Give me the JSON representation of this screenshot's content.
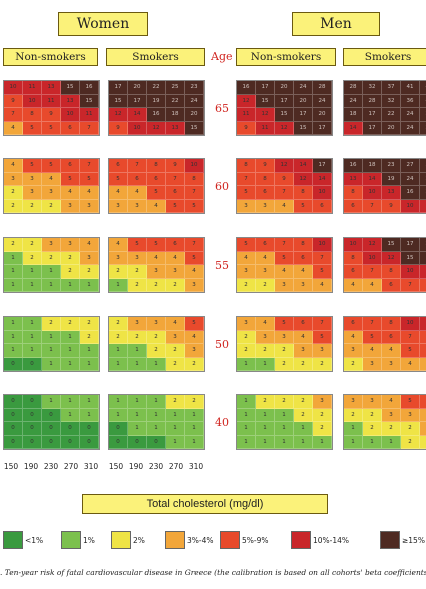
{
  "chart_data": {
    "type": "heatmap",
    "groups": [
      "Women",
      "Men"
    ],
    "smoking_labels": [
      "Non-smokers",
      "Smokers",
      "Non-smokers",
      "Smokers"
    ],
    "age_axis_label": "Age",
    "ages": [
      "65",
      "60",
      "55",
      "50",
      "40"
    ],
    "x_tick_labels": [
      "150",
      "190",
      "230",
      "270",
      "310"
    ],
    "x_label": "Total cholesterol (mg/dl)",
    "legend": [
      {
        "label": "<1%",
        "color": "#3a9a3f"
      },
      {
        "label": "1%",
        "color": "#7cc04d"
      },
      {
        "label": "2%",
        "color": "#efe446"
      },
      {
        "label": "3%-4%",
        "color": "#f2a63a"
      },
      {
        "label": "5%-9%",
        "color": "#e84a2c"
      },
      {
        "label": "10%-14%",
        "color": "#c9262a"
      },
      {
        "label": "≥15%",
        "color": "#4e2a22"
      }
    ],
    "panels": [
      {
        "group": "Women",
        "smoking": "Non-smokers",
        "age": "65",
        "rows": [
          [
            "10",
            "11",
            "13",
            "15",
            "16"
          ],
          [
            "9",
            "10",
            "11",
            "13",
            "15"
          ],
          [
            "7",
            "8",
            "9",
            "10",
            "11"
          ],
          [
            "4",
            "5",
            "5",
            "6",
            "7"
          ]
        ]
      },
      {
        "group": "Women",
        "smoking": "Smokers",
        "age": "65",
        "rows": [
          [
            "17",
            "20",
            "22",
            "25",
            "23"
          ],
          [
            "15",
            "17",
            "19",
            "22",
            "24"
          ],
          [
            "12",
            "14",
            "16",
            "18",
            "20"
          ],
          [
            "9",
            "10",
            "12",
            "13",
            "15"
          ]
        ]
      },
      {
        "group": "Men",
        "smoking": "Non-smokers",
        "age": "65",
        "rows": [
          [
            "16",
            "17",
            "20",
            "24",
            "28"
          ],
          [
            "12",
            "15",
            "17",
            "20",
            "24"
          ],
          [
            "11",
            "12",
            "15",
            "17",
            "20"
          ],
          [
            "9",
            "11",
            "12",
            "15",
            "17"
          ]
        ]
      },
      {
        "group": "Men",
        "smoking": "Smokers",
        "age": "65",
        "rows": [
          [
            "28",
            "32",
            "37",
            "41",
            "45"
          ],
          [
            "24",
            "28",
            "32",
            "36",
            "40"
          ],
          [
            "18",
            "17",
            "22",
            "24",
            "28"
          ],
          [
            "14",
            "17",
            "20",
            "24",
            "27"
          ]
        ]
      },
      {
        "group": "Women",
        "smoking": "Non-smokers",
        "age": "60",
        "rows": [
          [
            "4",
            "5",
            "5",
            "6",
            "7"
          ],
          [
            "3",
            "3",
            "4",
            "5",
            "5"
          ],
          [
            "2",
            "3",
            "3",
            "4",
            "4"
          ],
          [
            "2",
            "2",
            "2",
            "3",
            "3"
          ]
        ]
      },
      {
        "group": "Women",
        "smoking": "Smokers",
        "age": "60",
        "rows": [
          [
            "6",
            "7",
            "8",
            "9",
            "10"
          ],
          [
            "5",
            "6",
            "6",
            "7",
            "8"
          ],
          [
            "4",
            "4",
            "5",
            "6",
            "7"
          ],
          [
            "3",
            "3",
            "4",
            "5",
            "5"
          ]
        ]
      },
      {
        "group": "Men",
        "smoking": "Non-smokers",
        "age": "60",
        "rows": [
          [
            "8",
            "9",
            "12",
            "14",
            "17"
          ],
          [
            "7",
            "8",
            "9",
            "12",
            "14"
          ],
          [
            "5",
            "6",
            "7",
            "8",
            "10"
          ],
          [
            "3",
            "3",
            "4",
            "5",
            "6"
          ]
        ]
      },
      {
        "group": "Men",
        "smoking": "Smokers",
        "age": "60",
        "rows": [
          [
            "16",
            "18",
            "23",
            "27",
            "32"
          ],
          [
            "13",
            "14",
            "19",
            "24",
            "28"
          ],
          [
            "8",
            "10",
            "13",
            "16",
            "20"
          ],
          [
            "6",
            "7",
            "9",
            "10",
            "12"
          ]
        ]
      },
      {
        "group": "Women",
        "smoking": "Non-smokers",
        "age": "55",
        "rows": [
          [
            "2",
            "2",
            "3",
            "3",
            "4"
          ],
          [
            "1",
            "2",
            "2",
            "2",
            "3"
          ],
          [
            "1",
            "1",
            "1",
            "2",
            "2"
          ],
          [
            "1",
            "1",
            "1",
            "1",
            "1"
          ]
        ]
      },
      {
        "group": "Women",
        "smoking": "Smokers",
        "age": "55",
        "rows": [
          [
            "4",
            "5",
            "5",
            "6",
            "7"
          ],
          [
            "3",
            "3",
            "4",
            "4",
            "5"
          ],
          [
            "2",
            "2",
            "3",
            "3",
            "4"
          ],
          [
            "1",
            "2",
            "2",
            "2",
            "3"
          ]
        ]
      },
      {
        "group": "Men",
        "smoking": "Non-smokers",
        "age": "55",
        "rows": [
          [
            "5",
            "6",
            "7",
            "8",
            "10"
          ],
          [
            "4",
            "4",
            "5",
            "6",
            "7"
          ],
          [
            "3",
            "3",
            "4",
            "4",
            "5"
          ],
          [
            "2",
            "2",
            "3",
            "3",
            "4"
          ]
        ]
      },
      {
        "group": "Men",
        "smoking": "Smokers",
        "age": "55",
        "rows": [
          [
            "10",
            "12",
            "15",
            "17",
            "20"
          ],
          [
            "8",
            "10",
            "12",
            "15",
            "17"
          ],
          [
            "6",
            "7",
            "8",
            "10",
            "12"
          ],
          [
            "4",
            "4",
            "6",
            "7",
            "8"
          ]
        ]
      },
      {
        "group": "Women",
        "smoking": "Non-smokers",
        "age": "50",
        "rows": [
          [
            "1",
            "1",
            "2",
            "2",
            "2"
          ],
          [
            "1",
            "1",
            "1",
            "1",
            "2"
          ],
          [
            "1",
            "1",
            "1",
            "1",
            "1"
          ],
          [
            "0",
            "0",
            "1",
            "1",
            "1"
          ]
        ]
      },
      {
        "group": "Women",
        "smoking": "Smokers",
        "age": "50",
        "rows": [
          [
            "2",
            "3",
            "3",
            "4",
            "5"
          ],
          [
            "2",
            "2",
            "2",
            "3",
            "4"
          ],
          [
            "1",
            "1",
            "2",
            "2",
            "3"
          ],
          [
            "1",
            "1",
            "1",
            "2",
            "2"
          ]
        ]
      },
      {
        "group": "Men",
        "smoking": "Non-smokers",
        "age": "50",
        "rows": [
          [
            "3",
            "4",
            "5",
            "6",
            "7"
          ],
          [
            "2",
            "3",
            "3",
            "4",
            "5"
          ],
          [
            "2",
            "2",
            "2",
            "3",
            "3"
          ],
          [
            "1",
            "1",
            "2",
            "2",
            "2"
          ]
        ]
      },
      {
        "group": "Men",
        "smoking": "Smokers",
        "age": "50",
        "rows": [
          [
            "6",
            "7",
            "8",
            "10",
            "12"
          ],
          [
            "4",
            "5",
            "6",
            "7",
            "8"
          ],
          [
            "3",
            "4",
            "4",
            "5",
            "6"
          ],
          [
            "2",
            "3",
            "3",
            "4",
            "4"
          ]
        ]
      },
      {
        "group": "Women",
        "smoking": "Non-smokers",
        "age": "40",
        "rows": [
          [
            "0",
            "0",
            "1",
            "1",
            "1"
          ],
          [
            "0",
            "0",
            "0",
            "1",
            "1"
          ],
          [
            "0",
            "0",
            "0",
            "0",
            "0"
          ],
          [
            "0",
            "0",
            "0",
            "0",
            "0"
          ]
        ]
      },
      {
        "group": "Women",
        "smoking": "Smokers",
        "age": "40",
        "rows": [
          [
            "1",
            "1",
            "1",
            "2",
            "2"
          ],
          [
            "1",
            "1",
            "1",
            "1",
            "1"
          ],
          [
            "0",
            "1",
            "1",
            "1",
            "1"
          ],
          [
            "0",
            "0",
            "0",
            "1",
            "1"
          ]
        ]
      },
      {
        "group": "Men",
        "smoking": "Non-smokers",
        "age": "40",
        "rows": [
          [
            "1",
            "2",
            "2",
            "2",
            "3"
          ],
          [
            "1",
            "1",
            "1",
            "2",
            "2"
          ],
          [
            "1",
            "1",
            "1",
            "1",
            "2"
          ],
          [
            "1",
            "1",
            "1",
            "1",
            "1"
          ]
        ]
      },
      {
        "group": "Men",
        "smoking": "Smokers",
        "age": "40",
        "rows": [
          [
            "3",
            "3",
            "4",
            "5",
            "6"
          ],
          [
            "2",
            "2",
            "3",
            "3",
            "4"
          ],
          [
            "1",
            "2",
            "2",
            "2",
            "3"
          ],
          [
            "1",
            "1",
            "1",
            "2",
            "2"
          ]
        ]
      }
    ]
  },
  "caption": ". Ten-year risk of fatal cardiovascular disease in Greece (the calibration is based on all cohorts' beta coefficients)"
}
